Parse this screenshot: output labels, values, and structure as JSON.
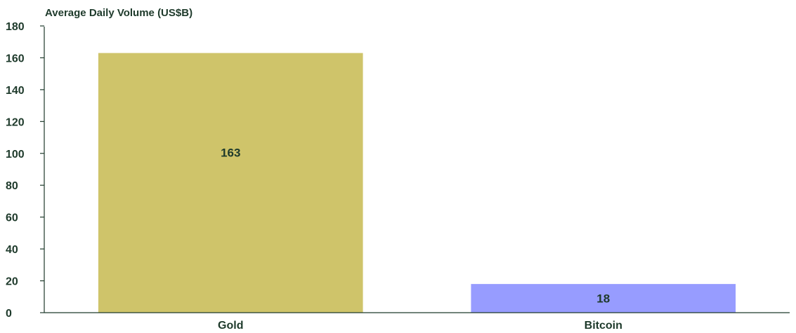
{
  "chart_data": {
    "type": "bar",
    "title": "",
    "ylabel": "Average Daily Volume (US$B)",
    "xlabel": "",
    "categories": [
      "Gold",
      "Bitcoin"
    ],
    "values": [
      163,
      18
    ],
    "data_labels": [
      "163",
      "18"
    ],
    "ylim": [
      0,
      180
    ],
    "yticks": [
      0,
      20,
      40,
      60,
      80,
      100,
      120,
      140,
      160,
      180
    ],
    "grid": false,
    "legend": "none",
    "colors": {
      "bars": [
        "#cfc46a",
        "#979cff"
      ],
      "text": "#1e3a2b",
      "background": "#ffffff"
    }
  }
}
